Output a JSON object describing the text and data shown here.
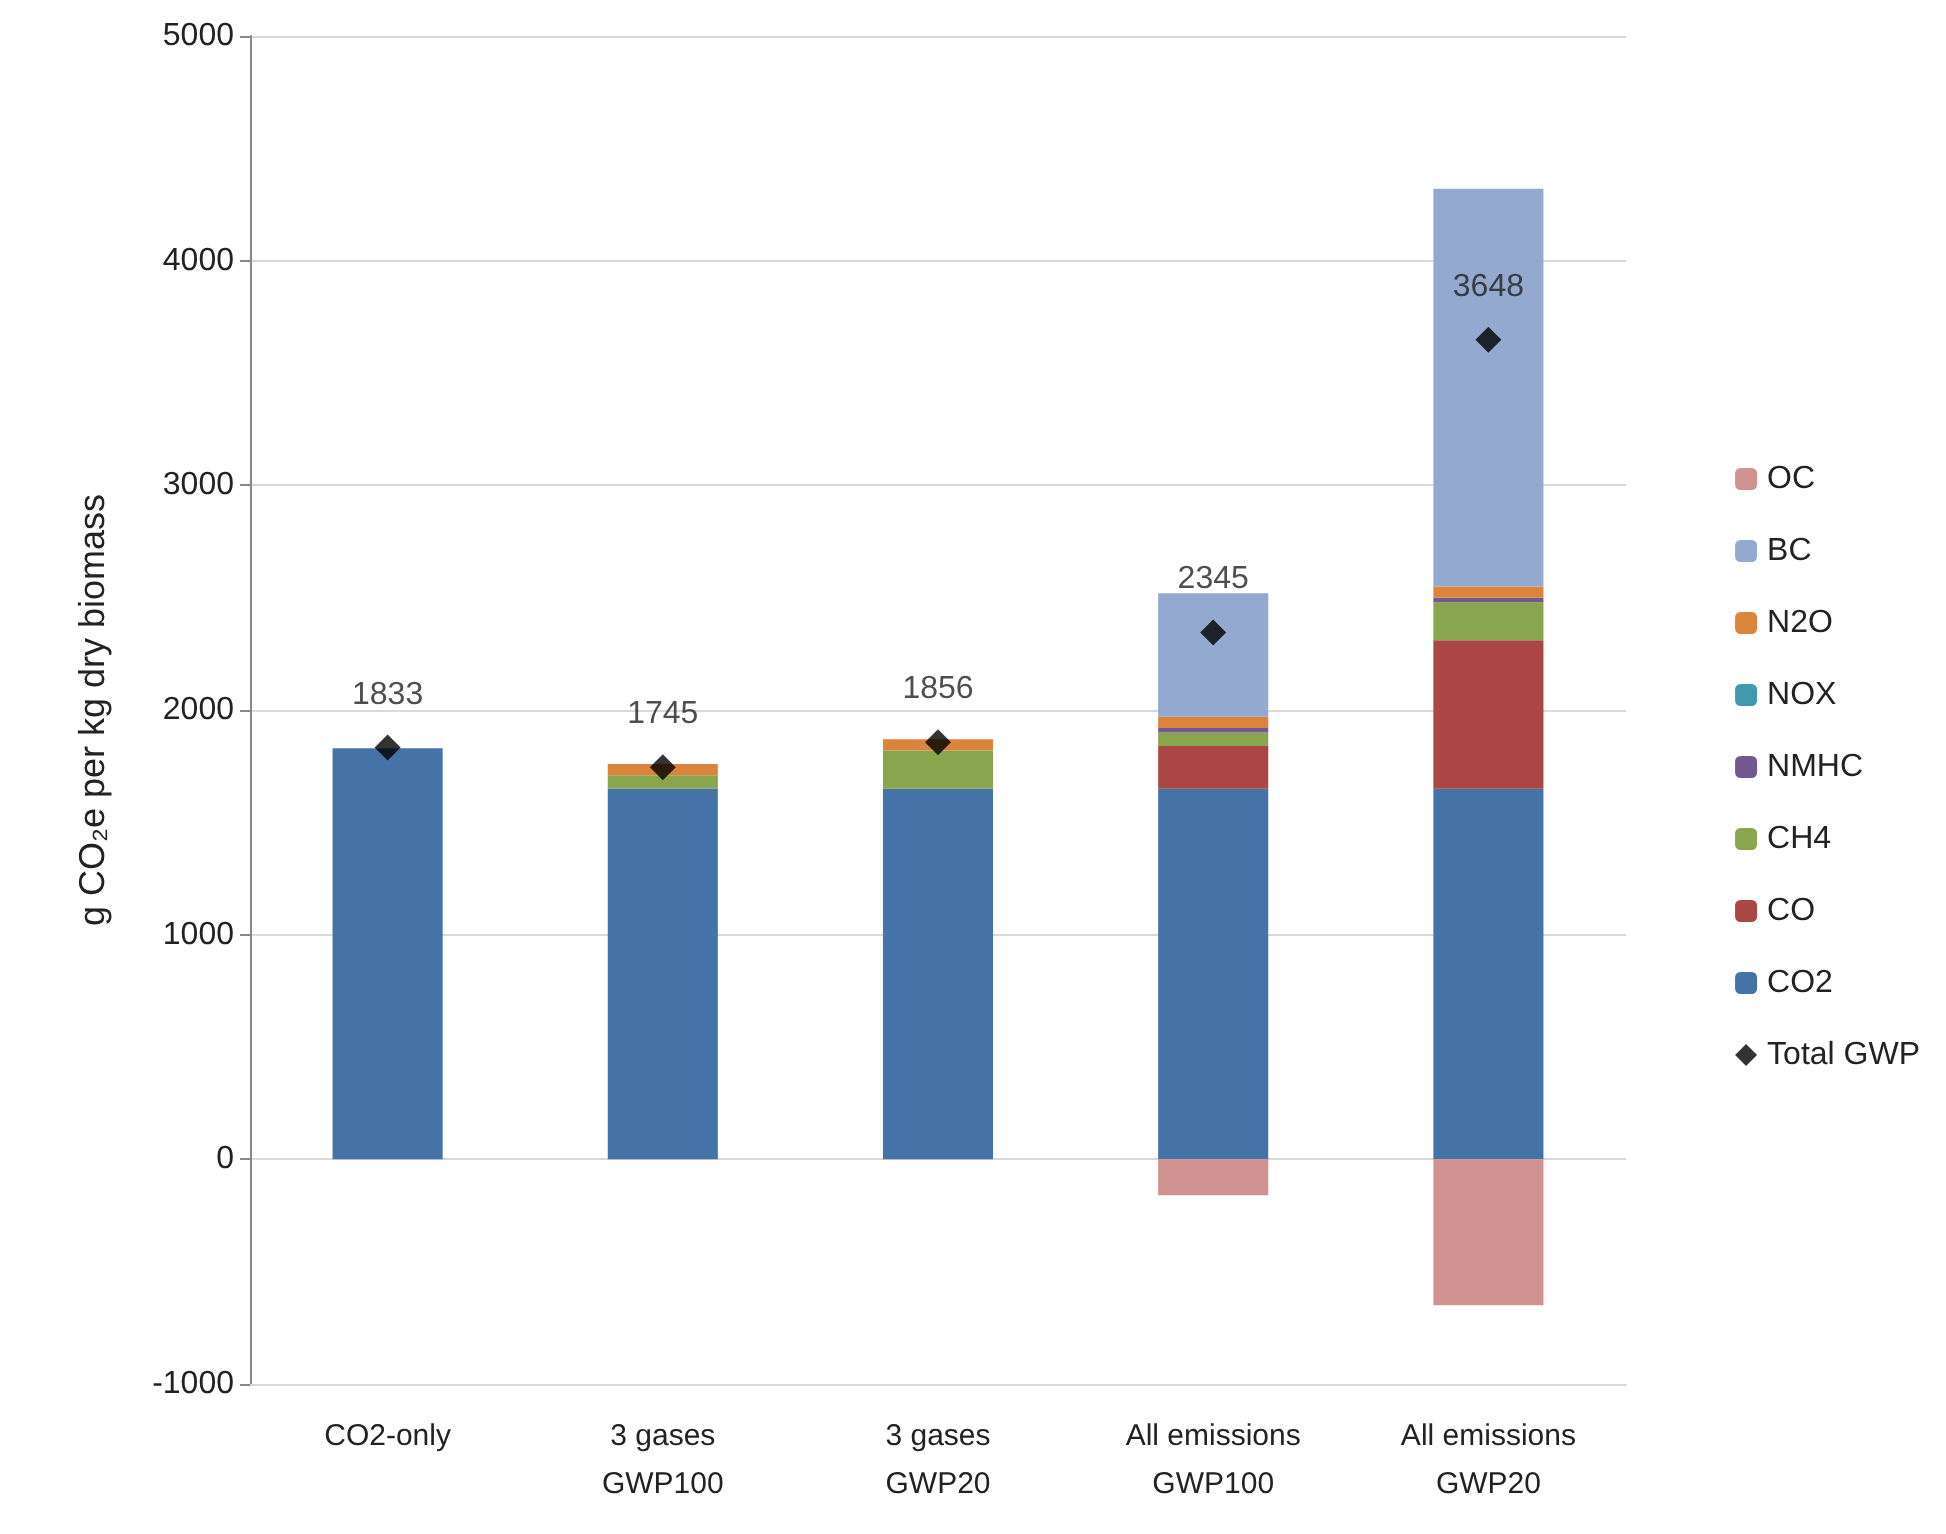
{
  "chart_data": {
    "type": "bar",
    "stacked": true,
    "ylabel": "g CO₂e per kg dry biomass",
    "categories": [
      "CO2-only",
      "3 gases\nGWP100",
      "3 gases\nGWP20",
      "All emissions\nGWP100",
      "All emissions\nGWP20"
    ],
    "series": [
      {
        "name": "CO2",
        "color": "#4572a7",
        "values": [
          1830,
          1650,
          1650,
          1650,
          1650
        ]
      },
      {
        "name": "CO",
        "color": "#aa4643",
        "values": [
          null,
          null,
          null,
          190,
          660
        ]
      },
      {
        "name": "CH4",
        "color": "#89a54e",
        "values": [
          null,
          60,
          170,
          60,
          170
        ]
      },
      {
        "name": "NMHC",
        "color": "#71588f",
        "values": [
          null,
          null,
          null,
          20,
          20
        ]
      },
      {
        "name": "NOX",
        "color": "#4198af",
        "values": [
          null,
          null,
          null,
          0,
          0
        ]
      },
      {
        "name": "N2O",
        "color": "#db843d",
        "values": [
          null,
          50,
          50,
          50,
          50
        ]
      },
      {
        "name": "BC",
        "color": "#93a9cf",
        "values": [
          null,
          null,
          null,
          550,
          1770
        ]
      },
      {
        "name": "OC",
        "color": "#d19392",
        "values": [
          null,
          null,
          null,
          -160,
          -650
        ]
      },
      {
        "name": "Total GWP",
        "type": "scatter",
        "marker": "diamond",
        "color": "#000000",
        "data_labels": true,
        "values": [
          1833,
          1745,
          1856,
          2345,
          3648
        ]
      }
    ],
    "ylim": [
      -1000,
      5000
    ],
    "yticks": [
      -1000,
      0,
      1000,
      2000,
      3000,
      4000,
      5000
    ],
    "grid": "y",
    "legend": "right"
  }
}
